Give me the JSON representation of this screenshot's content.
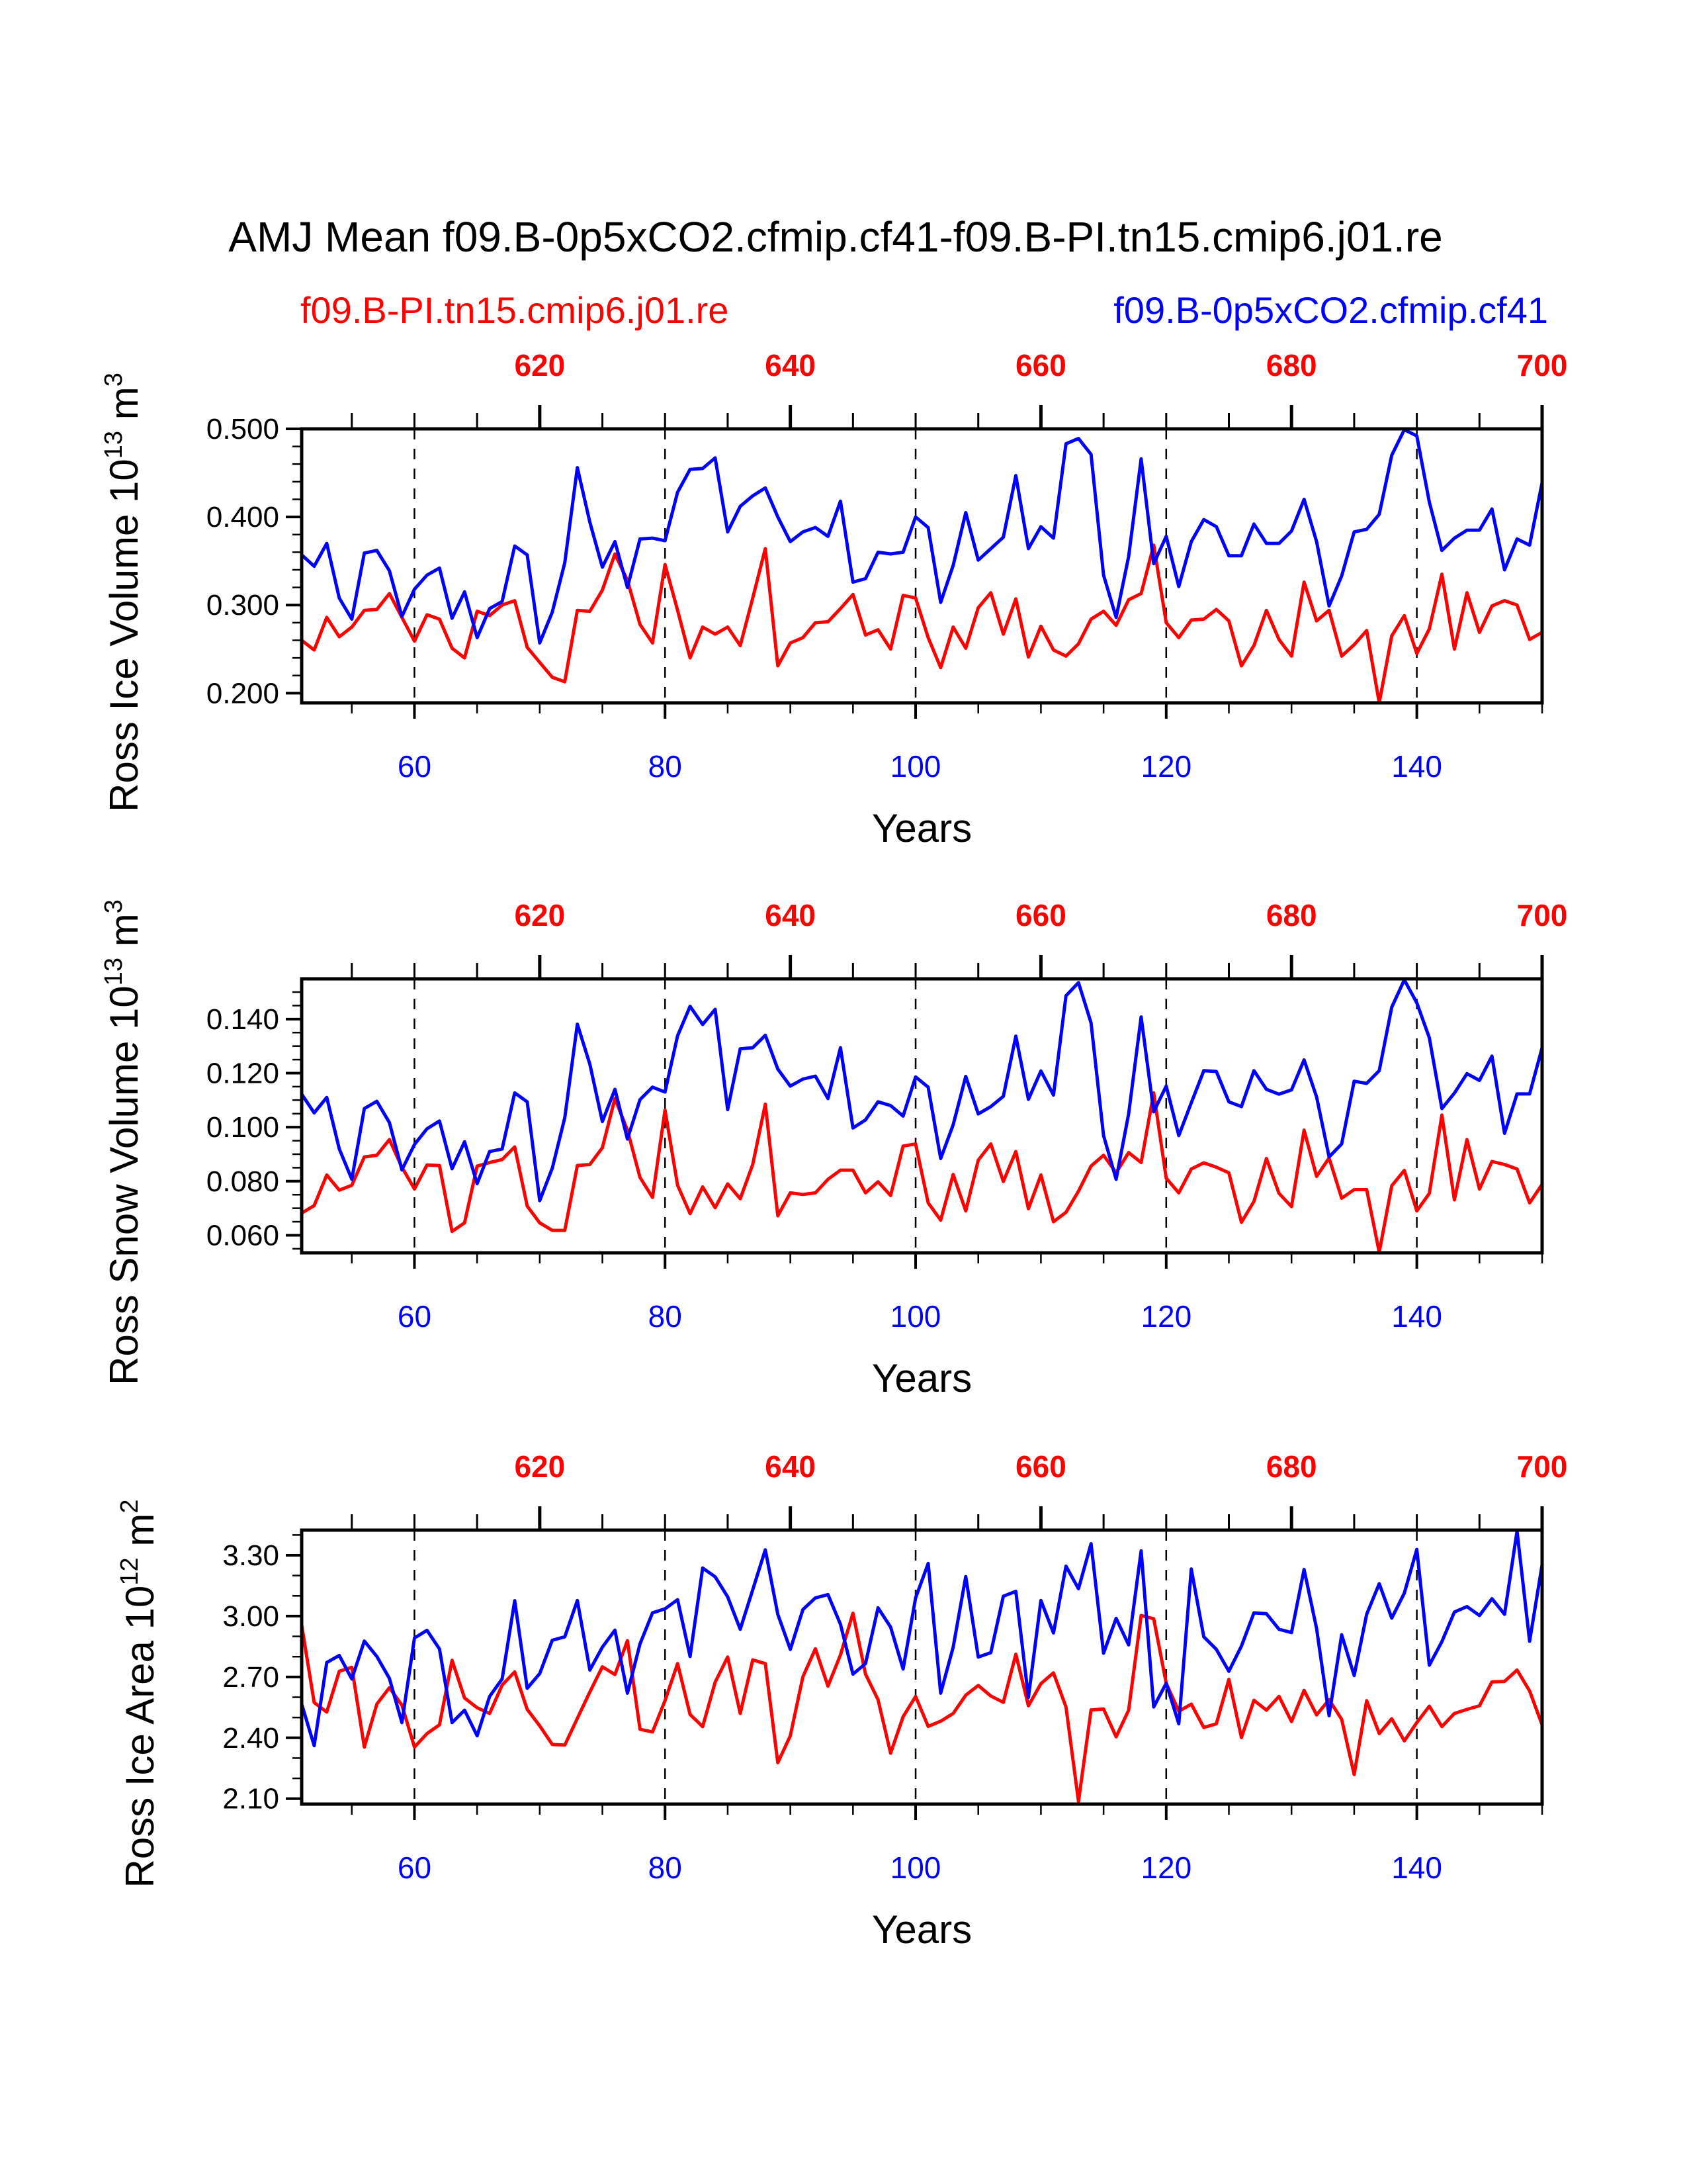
{
  "title": "AMJ Mean f09.B-0p5xCO2.cfmip.cf41-f09.B-PI.tn15.cmip6.j01.re",
  "legend": {
    "red_label": "f09.B-PI.tn15.cmip6.j01.re",
    "blue_label": "f09.B-0p5xCO2.cfmip.cf41"
  },
  "colors": {
    "red": "#ff0000",
    "blue": "#0000ff"
  },
  "chart_data": [
    {
      "type": "line",
      "ylabel": {
        "main": "Ross Ice Volume 10",
        "exp": "13",
        "unit": " m",
        "unit_exp": "3"
      },
      "xlabel": "Years",
      "xlim": [
        51,
        150
      ],
      "xticks": [
        "60",
        "80",
        "100",
        "120",
        "140"
      ],
      "xtick_values": [
        60,
        80,
        100,
        120,
        140
      ],
      "top_xticks": [
        "620",
        "640",
        "660",
        "680",
        "700"
      ],
      "top_offset": 550,
      "ylim": [
        0.189,
        0.5
      ],
      "yticks": [
        "0.200",
        "0.300",
        "0.400",
        "0.500"
      ],
      "ytick_values": [
        0.2,
        0.3,
        0.4,
        0.5
      ],
      "yminor_step": 0.02,
      "grid": "dashed vertical at major x ticks",
      "x_start": 51,
      "series": [
        {
          "name": "f09.B-PI.tn15.cmip6.j01.re",
          "color": "#ff0000",
          "values": [
            0.26,
            0.249,
            0.286,
            0.264,
            0.275,
            0.294,
            0.295,
            0.313,
            0.286,
            0.259,
            0.289,
            0.284,
            0.251,
            0.24,
            0.293,
            0.288,
            0.3,
            0.305,
            0.252,
            0.235,
            0.218,
            0.213,
            0.294,
            0.293,
            0.317,
            0.358,
            0.328,
            0.278,
            0.257,
            0.346,
            0.294,
            0.24,
            0.275,
            0.267,
            0.275,
            0.254,
            0.308,
            0.364,
            0.231,
            0.257,
            0.263,
            0.28,
            0.281,
            0.296,
            0.312,
            0.266,
            0.272,
            0.25,
            0.311,
            0.308,
            0.263,
            0.229,
            0.275,
            0.251,
            0.297,
            0.314,
            0.267,
            0.307,
            0.241,
            0.276,
            0.249,
            0.242,
            0.256,
            0.284,
            0.293,
            0.277,
            0.306,
            0.313,
            0.368,
            0.28,
            0.263,
            0.283,
            0.284,
            0.295,
            0.282,
            0.231,
            0.254,
            0.294,
            0.261,
            0.242,
            0.326,
            0.282,
            0.294,
            0.242,
            0.255,
            0.271,
            0.189,
            0.265,
            0.288,
            0.245,
            0.273,
            0.335,
            0.25,
            0.314,
            0.269,
            0.299,
            0.305,
            0.3,
            0.261,
            0.269
          ]
        },
        {
          "name": "f09.B-0p5xCO2.cfmip.cf41",
          "color": "#0000ff",
          "values": [
            0.357,
            0.344,
            0.37,
            0.308,
            0.284,
            0.359,
            0.362,
            0.339,
            0.287,
            0.318,
            0.334,
            0.342,
            0.285,
            0.315,
            0.263,
            0.296,
            0.304,
            0.367,
            0.357,
            0.257,
            0.292,
            0.348,
            0.456,
            0.394,
            0.343,
            0.372,
            0.32,
            0.375,
            0.376,
            0.373,
            0.428,
            0.454,
            0.455,
            0.467,
            0.383,
            0.412,
            0.424,
            0.433,
            0.4,
            0.372,
            0.383,
            0.388,
            0.378,
            0.418,
            0.326,
            0.33,
            0.36,
            0.358,
            0.36,
            0.4,
            0.388,
            0.303,
            0.345,
            0.405,
            0.351,
            0.364,
            0.377,
            0.447,
            0.364,
            0.389,
            0.376,
            0.483,
            0.489,
            0.471,
            0.334,
            0.286,
            0.355,
            0.466,
            0.347,
            0.378,
            0.321,
            0.372,
            0.397,
            0.389,
            0.356,
            0.356,
            0.392,
            0.37,
            0.37,
            0.384,
            0.42,
            0.372,
            0.299,
            0.333,
            0.383,
            0.386,
            0.403,
            0.47,
            0.499,
            0.492,
            0.417,
            0.362,
            0.376,
            0.385,
            0.385,
            0.409,
            0.34,
            0.375,
            0.368,
            0.439
          ]
        }
      ]
    },
    {
      "type": "line",
      "ylabel": {
        "main": "Ross Snow Volume 10",
        "exp": "13",
        "unit": " m",
        "unit_exp": "3"
      },
      "xlabel": "Years",
      "xlim": [
        51,
        150
      ],
      "xticks": [
        "60",
        "80",
        "100",
        "120",
        "140"
      ],
      "xtick_values": [
        60,
        80,
        100,
        120,
        140
      ],
      "top_xticks": [
        "620",
        "640",
        "660",
        "680",
        "700"
      ],
      "top_offset": 550,
      "ylim": [
        0.0535,
        0.1549
      ],
      "yticks": [
        "0.060",
        "0.080",
        "0.100",
        "0.120",
        "0.140"
      ],
      "ytick_values": [
        0.06,
        0.08,
        0.1,
        0.12,
        0.14
      ],
      "yminor_step": 0.005,
      "grid": "dashed vertical at major x ticks",
      "x_start": 51,
      "series": [
        {
          "name": "f09.B-PI.tn15.cmip6.j01.re",
          "color": "#ff0000",
          "values": [
            0.0682,
            0.071,
            0.0823,
            0.0767,
            0.0785,
            0.089,
            0.0896,
            0.0954,
            0.0852,
            0.0771,
            0.086,
            0.0858,
            0.0614,
            0.0646,
            0.0856,
            0.0869,
            0.088,
            0.0927,
            0.0708,
            0.0646,
            0.0618,
            0.0618,
            0.0858,
            0.0862,
            0.0924,
            0.1106,
            0.0989,
            0.0814,
            0.074,
            0.1063,
            0.0785,
            0.068,
            0.0779,
            0.0702,
            0.079,
            0.0735,
            0.0862,
            0.1085,
            0.0672,
            0.0757,
            0.0751,
            0.0757,
            0.0807,
            0.0841,
            0.0841,
            0.0757,
            0.0798,
            0.0747,
            0.093,
            0.0938,
            0.072,
            0.0656,
            0.0825,
            0.069,
            0.0878,
            0.0938,
            0.0799,
            0.091,
            0.0698,
            0.0823,
            0.065,
            0.0685,
            0.0763,
            0.0856,
            0.0896,
            0.0831,
            0.0906,
            0.0869,
            0.1127,
            0.0811,
            0.0757,
            0.0845,
            0.0868,
            0.0852,
            0.0831,
            0.0648,
            0.0725,
            0.0884,
            0.0755,
            0.0706,
            0.0989,
            0.0818,
            0.0886,
            0.0737,
            0.0769,
            0.0769,
            0.0537,
            0.0783,
            0.084,
            0.069,
            0.0755,
            0.1045,
            0.0731,
            0.0954,
            0.0771,
            0.0873,
            0.0862,
            0.0845,
            0.072,
            0.0788
          ]
        },
        {
          "name": "f09.B-0p5xCO2.cfmip.cf41",
          "color": "#0000ff",
          "values": [
            0.1122,
            0.1053,
            0.111,
            0.092,
            0.0807,
            0.1069,
            0.1096,
            0.1017,
            0.0842,
            0.0936,
            0.0994,
            0.1023,
            0.0846,
            0.0946,
            0.0791,
            0.091,
            0.0919,
            0.1127,
            0.1094,
            0.0728,
            0.0848,
            0.1035,
            0.1381,
            0.1233,
            0.1021,
            0.114,
            0.0956,
            0.1102,
            0.1148,
            0.113,
            0.1338,
            0.1447,
            0.138,
            0.1436,
            0.1065,
            0.129,
            0.1294,
            0.134,
            0.1215,
            0.1152,
            0.1178,
            0.1189,
            0.1106,
            0.1294,
            0.0997,
            0.1027,
            0.1094,
            0.108,
            0.1041,
            0.1186,
            0.1148,
            0.0884,
            0.1009,
            0.1188,
            0.1049,
            0.1076,
            0.1114,
            0.1337,
            0.1103,
            0.1208,
            0.1119,
            0.1486,
            0.1535,
            0.1386,
            0.0969,
            0.0807,
            0.1049,
            0.1408,
            0.1057,
            0.1152,
            0.0969,
            0.109,
            0.1209,
            0.1206,
            0.1094,
            0.1076,
            0.1209,
            0.114,
            0.1122,
            0.1138,
            0.1249,
            0.1112,
            0.089,
            0.0938,
            0.117,
            0.1162,
            0.1209,
            0.1444,
            0.1545,
            0.146,
            0.1331,
            0.1069,
            0.1126,
            0.1198,
            0.1173,
            0.1263,
            0.0977,
            0.1123,
            0.1123,
            0.1294
          ]
        }
      ]
    },
    {
      "type": "line",
      "ylabel": {
        "main": "Ross Ice Area 10",
        "exp": "12",
        "unit": " m",
        "unit_exp": "2"
      },
      "xlabel": "Years",
      "xlim": [
        51,
        150
      ],
      "xticks": [
        "60",
        "80",
        "100",
        "120",
        "140"
      ],
      "xtick_values": [
        60,
        80,
        100,
        120,
        140
      ],
      "top_xticks": [
        "620",
        "640",
        "660",
        "680",
        "700"
      ],
      "top_offset": 550,
      "ylim": [
        2.073,
        3.424
      ],
      "yticks": [
        "2.10",
        "2.40",
        "2.70",
        "3.00",
        "3.30"
      ],
      "ytick_values": [
        2.1,
        2.4,
        2.7,
        3.0,
        3.3
      ],
      "yminor_step": 0.1,
      "grid": "dashed vertical at major x ticks",
      "x_start": 51,
      "series": [
        {
          "name": "f09.B-PI.tn15.cmip6.j01.re",
          "color": "#ff0000",
          "values": [
            2.955,
            2.574,
            2.527,
            2.728,
            2.748,
            2.354,
            2.566,
            2.647,
            2.561,
            2.354,
            2.421,
            2.464,
            2.782,
            2.596,
            2.548,
            2.52,
            2.66,
            2.725,
            2.54,
            2.459,
            2.367,
            2.364,
            2.496,
            2.626,
            2.75,
            2.712,
            2.879,
            2.442,
            2.429,
            2.583,
            2.766,
            2.515,
            2.455,
            2.674,
            2.798,
            2.52,
            2.784,
            2.766,
            2.277,
            2.41,
            2.701,
            2.839,
            2.655,
            2.809,
            3.014,
            2.714,
            2.588,
            2.324,
            2.504,
            2.604,
            2.456,
            2.482,
            2.52,
            2.61,
            2.658,
            2.606,
            2.575,
            2.812,
            2.558,
            2.667,
            2.72,
            2.552,
            2.086,
            2.537,
            2.542,
            2.405,
            2.536,
            3.003,
            2.987,
            2.669,
            2.531,
            2.566,
            2.451,
            2.469,
            2.688,
            2.401,
            2.585,
            2.536,
            2.604,
            2.48,
            2.634,
            2.513,
            2.588,
            2.491,
            2.219,
            2.583,
            2.421,
            2.494,
            2.385,
            2.475,
            2.556,
            2.455,
            2.52,
            2.54,
            2.558,
            2.676,
            2.678,
            2.734,
            2.631,
            2.464
          ]
        },
        {
          "name": "f09.B-0p5xCO2.cfmip.cf41",
          "color": "#0000ff",
          "values": [
            2.566,
            2.361,
            2.771,
            2.806,
            2.69,
            2.877,
            2.801,
            2.693,
            2.475,
            2.892,
            2.93,
            2.838,
            2.475,
            2.536,
            2.41,
            2.604,
            2.69,
            3.076,
            2.644,
            2.717,
            2.881,
            2.898,
            3.077,
            2.734,
            2.847,
            2.931,
            2.62,
            2.863,
            3.016,
            3.036,
            3.081,
            2.801,
            3.237,
            3.194,
            3.095,
            2.935,
            3.13,
            3.327,
            3.009,
            2.836,
            3.032,
            3.09,
            3.106,
            2.96,
            2.714,
            2.766,
            3.041,
            2.946,
            2.739,
            3.09,
            3.26,
            2.62,
            2.847,
            3.195,
            2.798,
            2.82,
            3.098,
            3.122,
            2.599,
            3.077,
            2.917,
            3.246,
            3.135,
            3.357,
            2.817,
            2.989,
            2.858,
            3.322,
            2.552,
            2.669,
            2.469,
            3.232,
            2.898,
            2.836,
            2.728,
            2.852,
            3.016,
            3.012,
            2.935,
            2.919,
            3.23,
            2.939,
            2.509,
            2.908,
            2.707,
            3.009,
            3.16,
            2.99,
            3.113,
            3.329,
            2.758,
            2.874,
            3.02,
            3.047,
            3.003,
            3.086,
            3.009,
            3.419,
            2.876,
            3.253
          ]
        }
      ]
    }
  ]
}
